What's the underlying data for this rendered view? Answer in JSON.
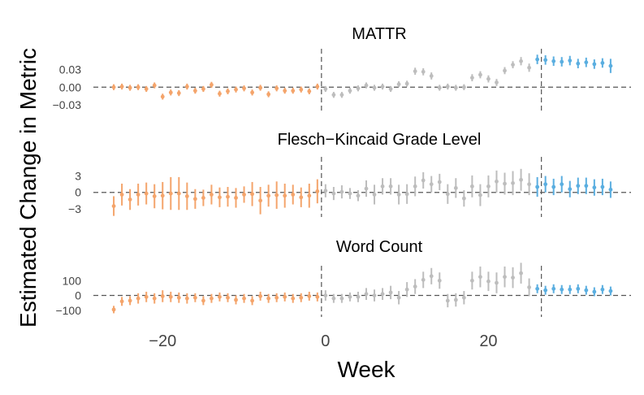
{
  "chart_data": {
    "type": "scatter",
    "ylabel": "Estimated Change in Metric",
    "xlabel": "Week",
    "x_ticks": [
      -20,
      0,
      20
    ],
    "xlim": [
      -28.5,
      38.5
    ],
    "vlines": [
      -0.5,
      26.5
    ],
    "colors": {
      "pre": "#F4A46B",
      "mid": "#BDBDBD",
      "post": "#5AAEE0"
    },
    "grid": false,
    "panels": [
      {
        "title": "MATTR",
        "ylim": [
          -0.045,
          0.065
        ],
        "y_ticks": [
          0.03,
          0.0,
          -0.03
        ],
        "y_tick_labels": [
          "0.03",
          "0.00",
          "−0.03"
        ],
        "points": [
          [
            -26,
            0.0,
            0.005
          ],
          [
            -25,
            0.001,
            0.005
          ],
          [
            -24,
            -0.001,
            0.005
          ],
          [
            -23,
            0.0,
            0.005
          ],
          [
            -22,
            -0.003,
            0.005
          ],
          [
            -21,
            0.003,
            0.005
          ],
          [
            -20,
            -0.016,
            0.005
          ],
          [
            -19,
            -0.009,
            0.005
          ],
          [
            -18,
            -0.01,
            0.005
          ],
          [
            -17,
            0.001,
            0.005
          ],
          [
            -16,
            -0.006,
            0.005
          ],
          [
            -15,
            -0.003,
            0.005
          ],
          [
            -14,
            0.004,
            0.005
          ],
          [
            -13,
            -0.011,
            0.005
          ],
          [
            -12,
            -0.007,
            0.005
          ],
          [
            -11,
            -0.004,
            0.005
          ],
          [
            -10,
            -0.002,
            0.005
          ],
          [
            -9,
            -0.009,
            0.005
          ],
          [
            -8,
            -0.001,
            0.005
          ],
          [
            -7,
            -0.012,
            0.005
          ],
          [
            -6,
            -0.002,
            0.005
          ],
          [
            -5,
            -0.006,
            0.005
          ],
          [
            -4,
            -0.006,
            0.005
          ],
          [
            -3,
            -0.004,
            0.005
          ],
          [
            -2,
            -0.007,
            0.005
          ],
          [
            -1,
            0.001,
            0.005
          ],
          [
            0,
            -0.003,
            0.005
          ],
          [
            1,
            -0.013,
            0.005
          ],
          [
            2,
            -0.013,
            0.005
          ],
          [
            3,
            -0.006,
            0.005
          ],
          [
            4,
            -0.002,
            0.005
          ],
          [
            5,
            0.003,
            0.005
          ],
          [
            6,
            -0.001,
            0.005
          ],
          [
            7,
            0.001,
            0.005
          ],
          [
            8,
            -0.003,
            0.005
          ],
          [
            9,
            0.005,
            0.005
          ],
          [
            10,
            0.006,
            0.005
          ],
          [
            11,
            0.027,
            0.006
          ],
          [
            12,
            0.026,
            0.006
          ],
          [
            13,
            0.019,
            0.006
          ],
          [
            14,
            -0.001,
            0.005
          ],
          [
            15,
            0.001,
            0.005
          ],
          [
            16,
            -0.001,
            0.005
          ],
          [
            17,
            0.0,
            0.005
          ],
          [
            18,
            0.016,
            0.006
          ],
          [
            19,
            0.021,
            0.006
          ],
          [
            20,
            0.014,
            0.006
          ],
          [
            21,
            0.008,
            0.006
          ],
          [
            22,
            0.028,
            0.006
          ],
          [
            23,
            0.038,
            0.006
          ],
          [
            24,
            0.044,
            0.007
          ],
          [
            25,
            0.033,
            0.007
          ],
          [
            26,
            0.047,
            0.008
          ],
          [
            27,
            0.046,
            0.008
          ],
          [
            28,
            0.044,
            0.008
          ],
          [
            29,
            0.043,
            0.008
          ],
          [
            30,
            0.045,
            0.008
          ],
          [
            31,
            0.04,
            0.008
          ],
          [
            32,
            0.042,
            0.008
          ],
          [
            33,
            0.039,
            0.008
          ],
          [
            34,
            0.041,
            0.008
          ],
          [
            35,
            0.036,
            0.012
          ]
        ]
      },
      {
        "title": "Flesch−Kincaid Grade Level",
        "ylim": [
          -4.5,
          6.5
        ],
        "y_ticks": [
          3,
          0,
          -3
        ],
        "y_tick_labels": [
          "3",
          "0",
          "−3"
        ],
        "points": [
          [
            -26,
            -2.5,
            1.8
          ],
          [
            -25,
            -0.4,
            2.0
          ],
          [
            -24,
            -1.3,
            1.9
          ],
          [
            -23,
            -0.4,
            2.0
          ],
          [
            -22,
            -0.2,
            2.0
          ],
          [
            -21,
            -0.7,
            2.2
          ],
          [
            -20,
            -0.6,
            2.5
          ],
          [
            -19,
            -0.2,
            3.0
          ],
          [
            -18,
            -0.2,
            3.0
          ],
          [
            -17,
            -0.7,
            2.5
          ],
          [
            -16,
            -1.2,
            1.8
          ],
          [
            -15,
            -1.0,
            1.5
          ],
          [
            -14,
            -0.4,
            1.8
          ],
          [
            -13,
            -0.9,
            1.8
          ],
          [
            -12,
            -0.8,
            1.8
          ],
          [
            -11,
            -1.0,
            1.8
          ],
          [
            -10,
            -0.4,
            1.5
          ],
          [
            -9,
            -0.3,
            2.2
          ],
          [
            -8,
            -1.5,
            2.5
          ],
          [
            -7,
            -0.6,
            2.0
          ],
          [
            -6,
            -0.5,
            2.5
          ],
          [
            -5,
            -0.6,
            2.2
          ],
          [
            -4,
            -0.4,
            1.8
          ],
          [
            -3,
            -0.9,
            1.8
          ],
          [
            -2,
            -0.6,
            2.2
          ],
          [
            -1,
            0.2,
            2.2
          ],
          [
            0,
            0.3,
            1.2
          ],
          [
            1,
            -0.2,
            1.2
          ],
          [
            2,
            0.1,
            1.2
          ],
          [
            3,
            -0.2,
            1.0
          ],
          [
            4,
            -0.6,
            1.0
          ],
          [
            5,
            0.7,
            1.5
          ],
          [
            6,
            -0.4,
            1.8
          ],
          [
            7,
            1.1,
            1.5
          ],
          [
            8,
            1.1,
            1.5
          ],
          [
            9,
            -0.4,
            1.8
          ],
          [
            10,
            -0.3,
            1.8
          ],
          [
            11,
            1.1,
            1.8
          ],
          [
            12,
            2.2,
            1.5
          ],
          [
            13,
            1.5,
            1.5
          ],
          [
            14,
            1.9,
            1.5
          ],
          [
            15,
            -0.3,
            1.8
          ],
          [
            16,
            0.8,
            1.8
          ],
          [
            17,
            -1.1,
            1.5
          ],
          [
            18,
            1.1,
            2.0
          ],
          [
            19,
            -0.5,
            2.0
          ],
          [
            20,
            1.1,
            2.0
          ],
          [
            21,
            2.0,
            2.0
          ],
          [
            22,
            1.6,
            2.0
          ],
          [
            23,
            1.7,
            2.2
          ],
          [
            24,
            2.3,
            2.0
          ],
          [
            25,
            1.5,
            2.0
          ],
          [
            26,
            1.0,
            1.8
          ],
          [
            27,
            1.5,
            1.5
          ],
          [
            28,
            1.0,
            1.5
          ],
          [
            29,
            1.5,
            1.5
          ],
          [
            30,
            0.6,
            1.5
          ],
          [
            31,
            1.2,
            1.5
          ],
          [
            32,
            1.2,
            1.5
          ],
          [
            33,
            0.9,
            1.5
          ],
          [
            34,
            1.0,
            1.5
          ],
          [
            35,
            0.5,
            1.5
          ]
        ]
      },
      {
        "title": "Word Count",
        "ylim": [
          -145,
          200
        ],
        "y_ticks": [
          100,
          0,
          -100
        ],
        "y_tick_labels": [
          "100",
          "0",
          "−100"
        ],
        "points": [
          [
            -26,
            -95,
            25
          ],
          [
            -25,
            -40,
            30
          ],
          [
            -24,
            -35,
            30
          ],
          [
            -23,
            -20,
            35
          ],
          [
            -22,
            -10,
            35
          ],
          [
            -21,
            -20,
            35
          ],
          [
            -20,
            -5,
            40
          ],
          [
            -19,
            -10,
            35
          ],
          [
            -18,
            -15,
            35
          ],
          [
            -17,
            -20,
            35
          ],
          [
            -16,
            -15,
            30
          ],
          [
            -15,
            -35,
            30
          ],
          [
            -14,
            -20,
            30
          ],
          [
            -13,
            -10,
            30
          ],
          [
            -12,
            -15,
            30
          ],
          [
            -11,
            -30,
            30
          ],
          [
            -10,
            -20,
            30
          ],
          [
            -9,
            -35,
            30
          ],
          [
            -8,
            -5,
            30
          ],
          [
            -7,
            -20,
            30
          ],
          [
            -6,
            -15,
            30
          ],
          [
            -5,
            -10,
            30
          ],
          [
            -4,
            -20,
            30
          ],
          [
            -3,
            -15,
            30
          ],
          [
            -2,
            -5,
            30
          ],
          [
            -1,
            -10,
            30
          ],
          [
            0,
            0,
            35
          ],
          [
            1,
            -20,
            30
          ],
          [
            2,
            -20,
            30
          ],
          [
            3,
            -10,
            30
          ],
          [
            4,
            -10,
            35
          ],
          [
            5,
            10,
            40
          ],
          [
            6,
            0,
            40
          ],
          [
            7,
            10,
            40
          ],
          [
            8,
            20,
            45
          ],
          [
            9,
            -15,
            45
          ],
          [
            10,
            40,
            50
          ],
          [
            11,
            60,
            50
          ],
          [
            12,
            105,
            55
          ],
          [
            13,
            130,
            55
          ],
          [
            14,
            100,
            55
          ],
          [
            15,
            -35,
            45
          ],
          [
            16,
            -30,
            45
          ],
          [
            17,
            -15,
            45
          ],
          [
            18,
            100,
            60
          ],
          [
            19,
            125,
            70
          ],
          [
            20,
            95,
            65
          ],
          [
            21,
            85,
            70
          ],
          [
            22,
            125,
            70
          ],
          [
            23,
            120,
            70
          ],
          [
            24,
            150,
            70
          ],
          [
            25,
            55,
            60
          ],
          [
            26,
            45,
            30
          ],
          [
            27,
            35,
            30
          ],
          [
            28,
            45,
            30
          ],
          [
            29,
            40,
            30
          ],
          [
            30,
            40,
            30
          ],
          [
            31,
            45,
            30
          ],
          [
            32,
            35,
            30
          ],
          [
            33,
            25,
            30
          ],
          [
            34,
            40,
            30
          ],
          [
            35,
            30,
            30
          ]
        ]
      }
    ]
  }
}
